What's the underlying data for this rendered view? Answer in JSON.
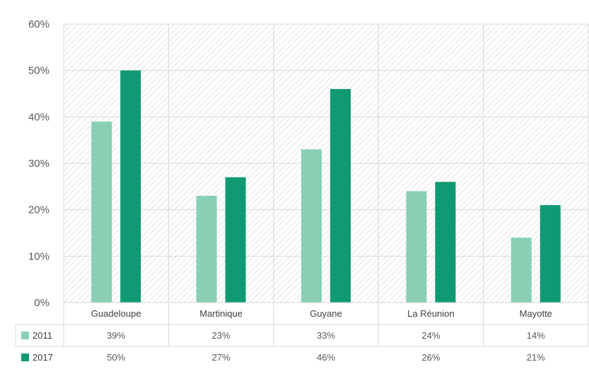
{
  "chart_data": {
    "type": "bar",
    "title": "",
    "xlabel": "",
    "ylabel": "",
    "categories": [
      "Guadeloupe",
      "Martinique",
      "Guyane",
      "La Réunion",
      "Mayotte"
    ],
    "ylim": [
      0,
      60
    ],
    "yticks": [
      "0%",
      "10%",
      "20%",
      "30%",
      "40%",
      "50%",
      "60%"
    ],
    "grid": true,
    "plot_background": "diagonal-hatch",
    "legend_placement": "data-table-below",
    "series": [
      {
        "name": "2011",
        "values": [
          39,
          23,
          33,
          24,
          14
        ],
        "labels": [
          "39%",
          "23%",
          "33%",
          "24%",
          "14%"
        ],
        "color": "#88cfb4"
      },
      {
        "name": "2017",
        "values": [
          50,
          27,
          46,
          26,
          21
        ],
        "labels": [
          "50%",
          "27%",
          "46%",
          "26%",
          "21%"
        ],
        "color": "#0f9a73"
      }
    ]
  }
}
